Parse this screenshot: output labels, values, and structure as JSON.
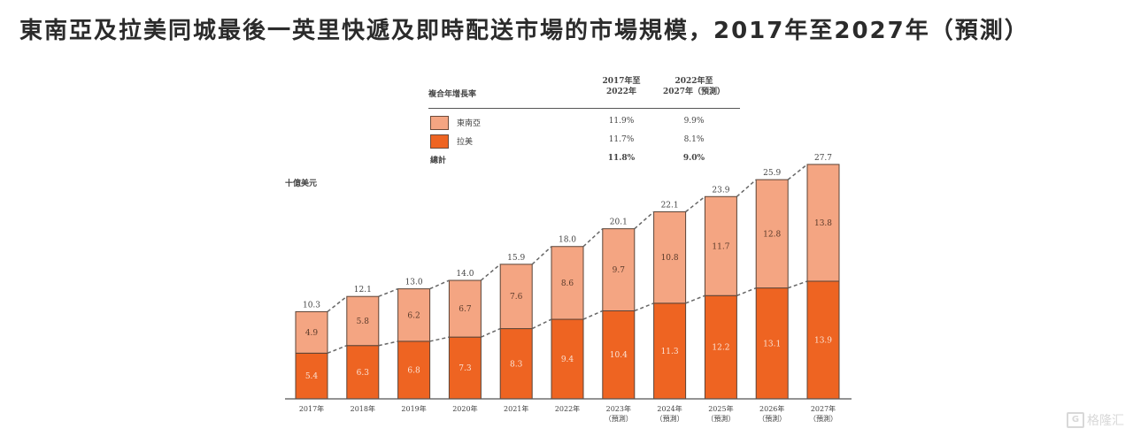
{
  "title": "東南亞及拉美同城最後一英里快遞及即時配送市場的市場規模，2017年至2027年（預測）",
  "cagr_table": {
    "label": "複合年增長率",
    "col1_line1": "2017年至",
    "col1_line2": "2022年",
    "col2_line1": "2022年至",
    "col2_line2": "2027年（預測）",
    "rows": [
      {
        "name": "東南亞",
        "color": "#f4a582",
        "v1": "11.9%",
        "v2": "9.9%"
      },
      {
        "name": "拉美",
        "color": "#ee6422",
        "v1": "11.7%",
        "v2": "8.1%"
      }
    ],
    "total": {
      "name": "總計",
      "v1": "11.8%",
      "v2": "9.0%"
    }
  },
  "watermark": {
    "logo_text": "G",
    "text": "格隆汇"
  },
  "chart_data": {
    "type": "bar",
    "stacked": true,
    "title": "東南亞及拉美同城最後一英里快遞及即時配送市場的市場規模，2017年至2027年（預測）",
    "ylabel": "十億美元",
    "xlabel": "",
    "ylim": [
      0,
      28
    ],
    "grid": false,
    "legend": "top",
    "categories": [
      {
        "year": "2017年",
        "note": ""
      },
      {
        "year": "2018年",
        "note": ""
      },
      {
        "year": "2019年",
        "note": ""
      },
      {
        "year": "2020年",
        "note": ""
      },
      {
        "year": "2021年",
        "note": ""
      },
      {
        "year": "2022年",
        "note": ""
      },
      {
        "year": "2023年",
        "note": "（預測）"
      },
      {
        "year": "2024年",
        "note": "（預測）"
      },
      {
        "year": "2025年",
        "note": "（預測）"
      },
      {
        "year": "2026年",
        "note": "（預測）"
      },
      {
        "year": "2027年",
        "note": "（預測）"
      }
    ],
    "series": [
      {
        "name": "拉美",
        "color": "#ee6422",
        "label_color": "#fbe3d6",
        "values": [
          5.4,
          6.3,
          6.8,
          7.3,
          8.3,
          9.4,
          10.4,
          11.3,
          12.2,
          13.1,
          13.9
        ]
      },
      {
        "name": "東南亞",
        "color": "#f4a582",
        "label_color": "#5a3a2a",
        "values": [
          4.9,
          5.8,
          6.2,
          6.7,
          7.6,
          8.6,
          9.7,
          10.8,
          11.7,
          12.8,
          13.8
        ]
      }
    ],
    "totals": [
      10.3,
      12.1,
      13.0,
      14.0,
      15.9,
      18.0,
      20.1,
      22.1,
      23.9,
      25.9,
      27.7
    ],
    "value_labels": {
      "拉美": [
        "5.4",
        "6.3",
        "6.8",
        "7.3",
        "8.3",
        "9.4",
        "10.4",
        "11.3",
        "12.2",
        "13.1",
        "13.9"
      ],
      "東南亞": [
        "4.9",
        "5.8",
        "6.2",
        "6.7",
        "7.6",
        "8.6",
        "9.7",
        "10.8",
        "11.7",
        "12.8",
        "13.8"
      ],
      "totals": [
        "10.3",
        "12.1",
        "13.0",
        "14.0",
        "15.9",
        "18.0",
        "20.1",
        "22.1",
        "23.9",
        "25.9",
        "27.7"
      ]
    }
  }
}
